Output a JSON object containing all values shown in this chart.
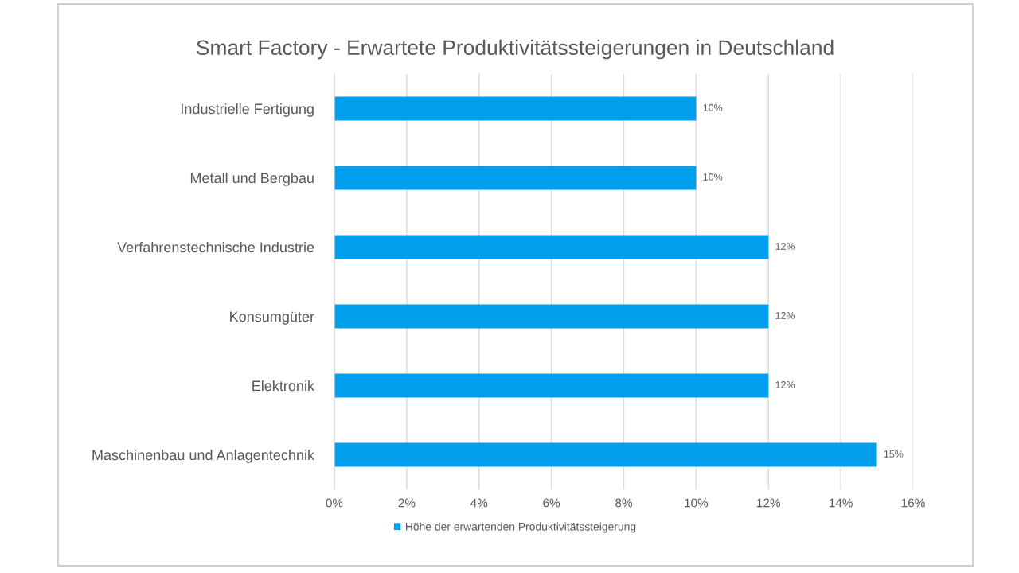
{
  "chart_data": {
    "type": "bar",
    "orientation": "horizontal",
    "title": "Smart Factory - Erwartete Produktivitätssteigerungen in Deutschland",
    "categories": [
      "Industrielle Fertigung",
      "Metall und Bergbau",
      "Verfahrenstechnische Industrie",
      "Konsumgüter",
      "Elektronik",
      "Maschinenbau und Anlagentechnik"
    ],
    "series": [
      {
        "name": "Höhe der erwartenden Produktivitätssteigerung",
        "color": "#009fee",
        "values": [
          10,
          10,
          12,
          12,
          12,
          15
        ],
        "value_labels": [
          "10%",
          "10%",
          "12%",
          "12%",
          "12%",
          "15%"
        ]
      }
    ],
    "xlim": [
      0,
      16
    ],
    "xticks": [
      {
        "value": 0,
        "label": "0%"
      },
      {
        "value": 2,
        "label": "2%"
      },
      {
        "value": 4,
        "label": "4%"
      },
      {
        "value": 6,
        "label": "6%"
      },
      {
        "value": 8,
        "label": "8%"
      },
      {
        "value": 10,
        "label": "10%"
      },
      {
        "value": 12,
        "label": "12%"
      },
      {
        "value": 14,
        "label": "14%"
      },
      {
        "value": 16,
        "label": "16%"
      }
    ],
    "grid": "x",
    "legend": "bottom"
  }
}
